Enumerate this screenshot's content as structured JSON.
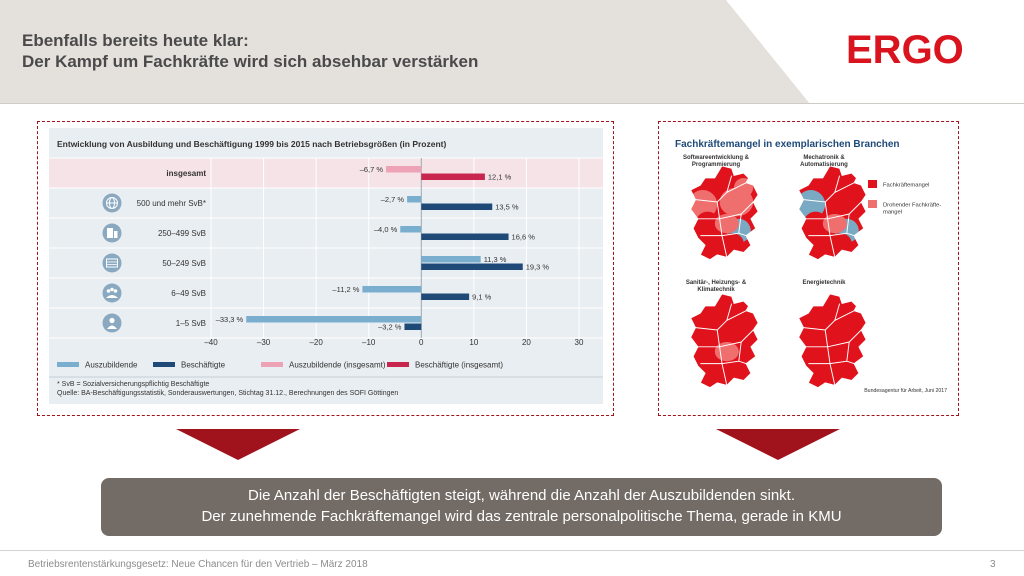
{
  "header": {
    "title_line1": "Ebenfalls bereits heute klar:",
    "title_line2": "Der Kampf um Fachkräfte wird sich absehbar verstärken",
    "logo_text": "ERGO"
  },
  "colors": {
    "brand_red": "#d9141e",
    "header_grey": "#e4e1dd",
    "azubi": "#7aaecf",
    "besch": "#1f4a78",
    "azubi_total": "#eea2b6",
    "besch_total": "#c8264f",
    "shortage": "#e0121c",
    "threat": "#ef6e6e",
    "no_shortage": "#79a9c3"
  },
  "chart_data": {
    "type": "bar",
    "orientation": "horizontal",
    "title": "Entwicklung von Ausbildung und Beschäftigung 1999 bis 2015 nach Betriebsgrößen (in Prozent)",
    "categories": [
      "insgesamt",
      "500 und mehr SvB*",
      "250–499 SvB",
      "50–249 SvB",
      "6–49 SvB",
      "1–5 SvB"
    ],
    "icons": [
      "",
      "globe-icon",
      "building-icon",
      "factory-icon",
      "group-icon",
      "person-icon"
    ],
    "series": [
      {
        "name": "Auszubildende",
        "values": [
          null,
          -2.7,
          -4.0,
          11.3,
          -11.2,
          -33.3
        ],
        "labels": [
          "",
          "–2,7 %",
          "–4,0 %",
          "11,3 %",
          "–11,2 %",
          "–33,3 %"
        ]
      },
      {
        "name": "Beschäftigte",
        "values": [
          null,
          13.5,
          16.6,
          19.3,
          9.1,
          -3.2
        ],
        "labels": [
          "",
          "13,5 %",
          "16,6 %",
          "19,3 %",
          "9,1 %",
          "–3,2 %"
        ]
      },
      {
        "name": "Auszubildende (insgesamt)",
        "values": [
          -6.7,
          null,
          null,
          null,
          null,
          null
        ],
        "labels": [
          "–6,7 %",
          "",
          "",
          "",
          "",
          ""
        ]
      },
      {
        "name": "Beschäftigte (insgesamt)",
        "values": [
          12.1,
          null,
          null,
          null,
          null,
          null
        ],
        "labels": [
          "12,1 %",
          "",
          "",
          "",
          "",
          ""
        ]
      }
    ],
    "xlim": [
      -40,
      30
    ],
    "xticks": [
      -40,
      -30,
      -20,
      -10,
      0,
      10,
      20,
      30
    ],
    "xtick_labels": [
      "–40",
      "–30",
      "–20",
      "–10",
      "0",
      "10",
      "20",
      "30"
    ],
    "grid": true,
    "legend": "bottom",
    "footnote1": "* SvB = Sozialversicherungspflichtig Beschäftigte",
    "footnote2": "Quelle: BA-Beschäftigungsstatistik, Sonderauswertungen, Stichtag 31.12., Berechnungen des SOFI Göttingen"
  },
  "maps": {
    "title": "Fachkräftemangel in exemplarischen Branchen",
    "panels": [
      {
        "label_line1": "Softwareentwicklung &",
        "label_line2": "Programmierung",
        "pattern": "software"
      },
      {
        "label_line1": "Mechatronik &",
        "label_line2": "Automatisierung",
        "pattern": "mechatronik"
      },
      {
        "label_line1": "Sanitär-, Heizungs- &",
        "label_line2": "Klimatechnik",
        "pattern": "shk"
      },
      {
        "label_line1": "Energietechnik",
        "label_line2": "",
        "pattern": "energie"
      }
    ],
    "legend": [
      {
        "label_line1": "Fachkräftemangel",
        "label_line2": "",
        "color": "#e0121c"
      },
      {
        "label_line1": "Drohender Fachkräfte-",
        "label_line2": "mangel",
        "color": "#ef6e6e"
      }
    ],
    "source": "Bundesagentur für Arbeit, Juni 2017"
  },
  "summary": {
    "line1": "Die Anzahl der Beschäftigten steigt, während die Anzahl der Auszubildenden sinkt.",
    "line2": "Der zunehmende Fachkräftemangel wird das zentrale personalpolitische Thema, gerade in KMU"
  },
  "footer": {
    "text": "Betriebsrentenstärkungsgesetz: Neue Chancen für den Vertrieb – März 2018",
    "page": "3"
  }
}
